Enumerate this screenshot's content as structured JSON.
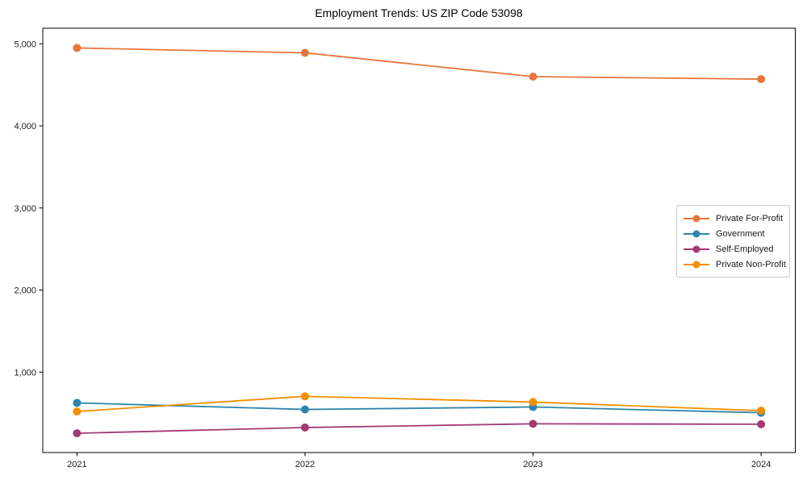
{
  "chart_data": {
    "type": "line",
    "title": "Employment Trends: US ZIP Code 53098",
    "x": [
      2021,
      2022,
      2023,
      2024
    ],
    "x_tick_labels": [
      "2021",
      "2022",
      "2023",
      "2024"
    ],
    "series": [
      {
        "name": "Private For-Profit",
        "color": "#E8763B",
        "values": [
          4950,
          4890,
          4600,
          4570
        ]
      },
      {
        "name": "Government",
        "color": "#2E86AB",
        "values": [
          625,
          545,
          575,
          505
        ]
      },
      {
        "name": "Self-Employed",
        "color": "#A23B72",
        "values": [
          255,
          325,
          370,
          365
        ]
      },
      {
        "name": "Private Non-Profit",
        "color": "#F18F01",
        "values": [
          520,
          705,
          635,
          530
        ]
      }
    ],
    "xlim": [
      2020.85,
      2024.15
    ],
    "ylim": [
      20,
      5190
    ],
    "yticks": [
      1000,
      2000,
      3000,
      4000,
      5000
    ],
    "ytick_labels": [
      "1,000",
      "2,000",
      "3,000",
      "4,000",
      "5,000"
    ],
    "grid": false,
    "legend_position": "center-right",
    "axis_color": "#000000",
    "tick_label_color": "#1a1a1a",
    "xlabel": "",
    "ylabel": ""
  }
}
